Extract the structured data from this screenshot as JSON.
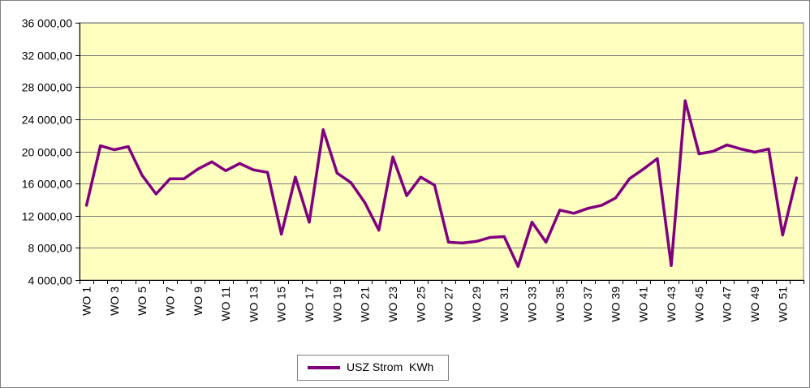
{
  "colors": {
    "plot_background": "#FFFFC0",
    "series_line": "#800080",
    "gridline": "#7F7F7F",
    "axis": "#000000"
  },
  "chart_data": {
    "type": "line",
    "title": "",
    "xlabel": "",
    "ylabel": "",
    "ylim": [
      4000,
      36000
    ],
    "y_tick_labels": [
      "4 000,00",
      "8 000,00",
      "12 000,00",
      "16 000,00",
      "20 000,00",
      "24 000,00",
      "28 000,00",
      "32 000,00",
      "36 000,00"
    ],
    "y_tick_values": [
      4000,
      8000,
      12000,
      16000,
      20000,
      24000,
      28000,
      32000,
      36000
    ],
    "categories": [
      "WO 1",
      "WO 2",
      "WO 3",
      "WO 4",
      "WO 5",
      "WO 6",
      "WO 7",
      "WO 8",
      "WO 9",
      "WO 10",
      "WO 11",
      "WO 12",
      "WO 13",
      "WO 14",
      "WO 15",
      "WO 16",
      "WO 17",
      "WO 18",
      "WO 19",
      "WO 20",
      "WO 21",
      "WO 22",
      "WO 23",
      "WO 24",
      "WO 25",
      "WO 26",
      "WO 27",
      "WO 28",
      "WO 29",
      "WO 30",
      "WO 31",
      "WO 32",
      "WO 33",
      "WO 34",
      "WO 35",
      "WO 36",
      "WO 37",
      "WO 38",
      "WO 39",
      "WO 40",
      "WO 41",
      "WO 42",
      "WO 43",
      "WO 44",
      "WO 45",
      "WO 46",
      "WO 47",
      "WO 48",
      "WO 49",
      "WO 50",
      "WO 51",
      "WO 52"
    ],
    "x_label_every": 2,
    "grid": "horizontal",
    "legend_position": "bottom",
    "series": [
      {
        "name": "USZ Strom  KWh",
        "values": [
          13300,
          20700,
          20200,
          20600,
          17000,
          14700,
          16600,
          16600,
          17800,
          18700,
          17600,
          18500,
          17700,
          17400,
          9700,
          16800,
          11200,
          22700,
          17300,
          16100,
          13600,
          10200,
          19300,
          14500,
          16800,
          15800,
          8700,
          8600,
          8800,
          9300,
          9400,
          5700,
          11200,
          8700,
          12700,
          12300,
          12900,
          13300,
          14200,
          16600,
          17800,
          19100,
          5800,
          26300,
          19700,
          20000,
          20800,
          20300,
          19900,
          20300,
          9600,
          16700
        ]
      }
    ]
  }
}
